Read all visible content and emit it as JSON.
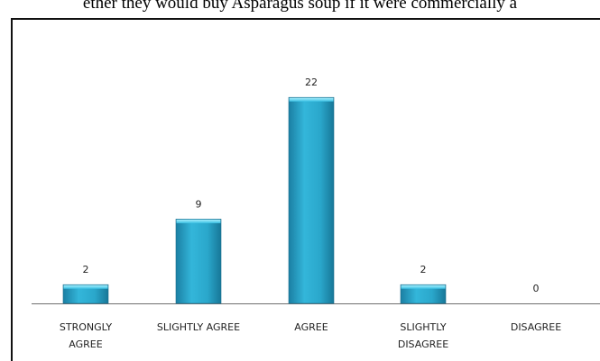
{
  "caption": "ether they would buy Asparagus soup if it were commercially a",
  "chart_data": {
    "type": "bar",
    "categories": [
      [
        "STRONGLY",
        "AGREE"
      ],
      [
        "SLIGHTLY AGREE"
      ],
      [
        "AGREE"
      ],
      [
        "SLIGHTLY",
        "DISAGREE"
      ],
      [
        "DISAGREE"
      ]
    ],
    "values": [
      2,
      9,
      22,
      2,
      0
    ],
    "data_labels": [
      "2",
      "9",
      "22",
      "2",
      "0"
    ],
    "title": "",
    "xlabel": "",
    "ylabel": "",
    "ylim": [
      0,
      24
    ],
    "grid": false,
    "legend": "none",
    "bar_color": "#29a9cc"
  }
}
